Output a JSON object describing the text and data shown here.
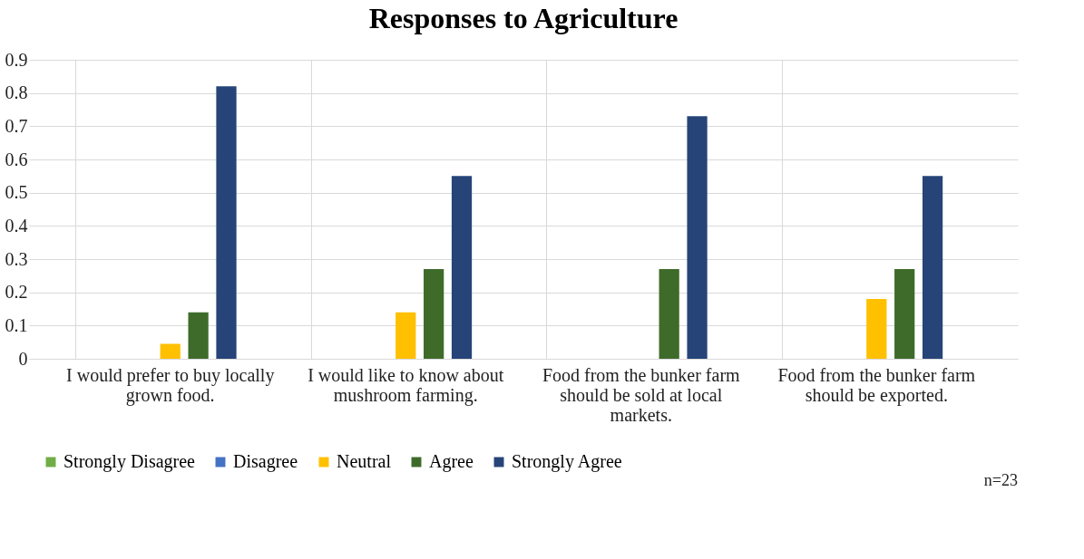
{
  "chart_data": {
    "type": "bar",
    "title": "Responses to Agriculture",
    "categories": [
      "I would prefer to buy locally grown food.",
      "I would like to know about mushroom farming.",
      "Food from the bunker farm should be sold at local markets.",
      "Food from the bunker farm should be exported."
    ],
    "series": [
      {
        "name": "Strongly Disagree",
        "color": "#70ad47",
        "values": [
          0,
          0,
          0,
          0
        ]
      },
      {
        "name": "Disagree",
        "color": "#4472c4",
        "values": [
          0,
          0,
          0,
          0
        ]
      },
      {
        "name": "Neutral",
        "color": "#ffc000",
        "values": [
          0.045,
          0.14,
          0,
          0.18
        ]
      },
      {
        "name": "Agree",
        "color": "#3e6b2a",
        "values": [
          0.14,
          0.27,
          0.27,
          0.27
        ]
      },
      {
        "name": "Strongly Agree",
        "color": "#264478",
        "values": [
          0.82,
          0.55,
          0.73,
          0.55
        ]
      }
    ],
    "ylim": [
      0,
      0.9
    ],
    "yticks": [
      0,
      0.1,
      0.2,
      0.3,
      0.4,
      0.5,
      0.6,
      0.7,
      0.8,
      0.9
    ],
    "grid": true,
    "legend": "bottom",
    "annotations": [
      "n=23"
    ]
  }
}
